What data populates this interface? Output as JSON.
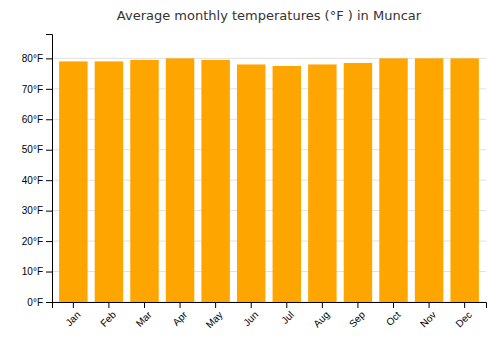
{
  "chart_data": {
    "type": "bar",
    "title": "Average monthly temperatures (°F ) in Muncar",
    "categories": [
      "Jan",
      "Feb",
      "Mar",
      "Apr",
      "May",
      "Jun",
      "Jul",
      "Aug",
      "Sep",
      "Oct",
      "Nov",
      "Dec"
    ],
    "values": [
      79.0,
      79.0,
      79.5,
      80.0,
      79.5,
      78.0,
      77.5,
      78.0,
      78.5,
      80.0,
      80.0,
      80.0
    ],
    "color": "#FFA500",
    "ylim": [
      0,
      88
    ],
    "yticks": [
      {
        "value": 0,
        "label": "0°F"
      },
      {
        "value": 10,
        "label": "10°F"
      },
      {
        "value": 20,
        "label": "20°F"
      },
      {
        "value": 30,
        "label": "30°F"
      },
      {
        "value": 40,
        "label": "40°F"
      },
      {
        "value": 50,
        "label": "50°F"
      },
      {
        "value": 60,
        "label": "60°F"
      },
      {
        "value": 70,
        "label": "70°F"
      },
      {
        "value": 80,
        "label": "80°F"
      }
    ],
    "grid": true
  }
}
